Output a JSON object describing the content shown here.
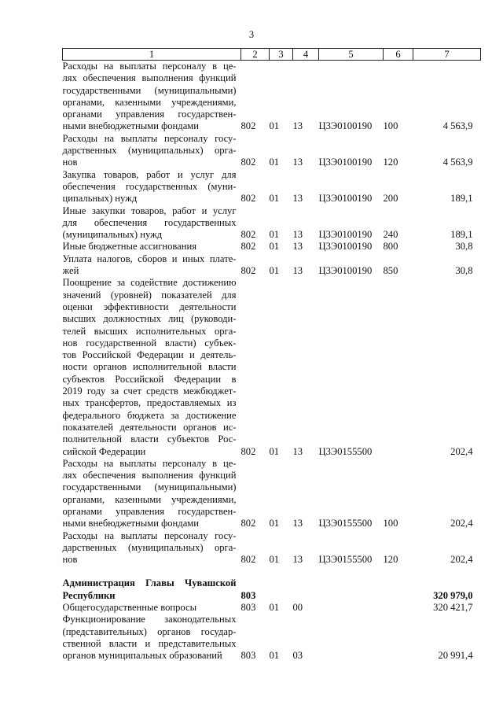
{
  "page_number": "3",
  "headers": [
    "1",
    "2",
    "3",
    "4",
    "5",
    "6",
    "7"
  ],
  "rows": [
    {
      "text": [
        "Расходы на выплаты персоналу в це-",
        "лях обеспечения выполнения функций",
        "государственными (муниципальными)",
        "органами, казенными учреждениями,",
        "органами управления государствен-",
        "ными внебюджетными фондами"
      ],
      "c2": "802",
      "c3": "01",
      "c4": "13",
      "c5": "Ц3Э0100190",
      "c6": "100",
      "c7": "4 563,9"
    },
    {
      "text": [
        "Расходы на выплаты персоналу госу-",
        "дарственных (муниципальных) орга-",
        "нов"
      ],
      "c2": "802",
      "c3": "01",
      "c4": "13",
      "c5": "Ц3Э0100190",
      "c6": "120",
      "c7": "4 563,9"
    },
    {
      "text": [
        "Закупка товаров, работ и услуг для",
        "обеспечения государственных (муни-",
        "ципальных) нужд"
      ],
      "c2": "802",
      "c3": "01",
      "c4": "13",
      "c5": "Ц3Э0100190",
      "c6": "200",
      "c7": "189,1"
    },
    {
      "text": [
        "Иные закупки товаров, работ и услуг",
        "для обеспечения государственных",
        "(муниципальных) нужд"
      ],
      "c2": "802",
      "c3": "01",
      "c4": "13",
      "c5": "Ц3Э0100190",
      "c6": "240",
      "c7": "189,1"
    },
    {
      "text": [
        "Иные бюджетные ассигнования"
      ],
      "c2": "802",
      "c3": "01",
      "c4": "13",
      "c5": "Ц3Э0100190",
      "c6": "800",
      "c7": "30,8"
    },
    {
      "text": [
        "Уплата налогов, сборов и иных плате-",
        "жей"
      ],
      "c2": "802",
      "c3": "01",
      "c4": "13",
      "c5": "Ц3Э0100190",
      "c6": "850",
      "c7": "30,8"
    },
    {
      "text": [
        "Поощрение за содействие достижению",
        "значений (уровней) показателей для",
        "оценки эффективности деятельности",
        "высших должностных лиц (руководи-",
        "телей высших исполнительных орга-",
        "нов государственной власти) субъек-",
        "тов Российской Федерации и деятель-",
        "ности органов исполнительной власти",
        "субъектов Российской Федерации в",
        "2019 году за счет средств межбюджет-",
        "ных трансфертов, предоставляемых из",
        "федерального бюджета за достижение",
        "показателей деятельности органов ис-",
        "полнительной власти субъектов Рос-",
        "сийской Федерации"
      ],
      "c2": "802",
      "c3": "01",
      "c4": "13",
      "c5": "Ц3Э0155500",
      "c6": "",
      "c7": "202,4"
    },
    {
      "text": [
        "Расходы на выплаты персоналу в це-",
        "лях обеспечения выполнения функций",
        "государственными (муниципальными)",
        "органами, казенными учреждениями,",
        "органами управления государствен-",
        "ными внебюджетными фондами"
      ],
      "c2": "802",
      "c3": "01",
      "c4": "13",
      "c5": "Ц3Э0155500",
      "c6": "100",
      "c7": "202,4"
    },
    {
      "text": [
        "Расходы на выплаты персоналу госу-",
        "дарственных (муниципальных) орга-",
        "нов"
      ],
      "c2": "802",
      "c3": "01",
      "c4": "13",
      "c5": "Ц3Э0155500",
      "c6": "120",
      "c7": "202,4"
    },
    {
      "gap": true
    },
    {
      "bold": true,
      "text": [
        "Администрация Главы Чувашской",
        "Республики"
      ],
      "c2": "803",
      "c3": "",
      "c4": "",
      "c5": "",
      "c6": "",
      "c7": "320 979,0"
    },
    {
      "text": [
        "Общегосударственные вопросы"
      ],
      "c2": "803",
      "c3": "01",
      "c4": "00",
      "c5": "",
      "c6": "",
      "c7": "320 421,7"
    },
    {
      "text": [
        "Функционирование законодательных",
        "(представительных) органов государ-",
        "ственной власти и представительных",
        "органов муниципальных образований"
      ],
      "c2": "803",
      "c3": "01",
      "c4": "03",
      "c5": "",
      "c6": "",
      "c7": "20 991,4"
    }
  ]
}
